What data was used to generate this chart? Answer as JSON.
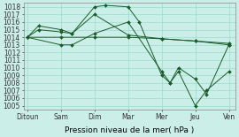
{
  "xlabel": "Pression niveau de la mer( hPa )",
  "background_color": "#cceee8",
  "grid_color": "#99ddcc",
  "line_color": "#1a5c2a",
  "marker_color": "#1a5c2a",
  "x_labels": [
    "Ditoun",
    "Sam",
    "Dim",
    "Mar",
    "Mer",
    "Jeu",
    "Ven"
  ],
  "x_positions": [
    0,
    2,
    4,
    6,
    8,
    10,
    12
  ],
  "ylim": [
    1004.5,
    1018.5
  ],
  "yticks": [
    1005,
    1006,
    1007,
    1008,
    1009,
    1010,
    1011,
    1012,
    1013,
    1014,
    1015,
    1016,
    1017,
    1018
  ],
  "series": [
    {
      "x": [
        0,
        0.67,
        2,
        2.67,
        4,
        4.67,
        6,
        6.67,
        8,
        8.5,
        9,
        10,
        10.67,
        12
      ],
      "y": [
        1014,
        1015.5,
        1015,
        1014.5,
        1018,
        1018.2,
        1018,
        1016,
        1009,
        1008,
        1009.5,
        1005,
        1007,
        1009.5
      ]
    },
    {
      "x": [
        0,
        0.67,
        2,
        2.67,
        4,
        6,
        8,
        10,
        12
      ],
      "y": [
        1014,
        1015,
        1014.7,
        1014.5,
        1017,
        1014.3,
        1013.8,
        1013.5,
        1013
      ]
    },
    {
      "x": [
        0,
        2,
        4,
        6,
        8,
        10,
        12
      ],
      "y": [
        1014,
        1014,
        1014,
        1014,
        1013.8,
        1013.5,
        1013.2
      ]
    },
    {
      "x": [
        0,
        2,
        2.67,
        4,
        6,
        8,
        8.5,
        9,
        10,
        10.67,
        12
      ],
      "y": [
        1014,
        1013,
        1013,
        1014.5,
        1016,
        1009.5,
        1008,
        1010,
        1008.5,
        1006.5,
        1013
      ]
    }
  ]
}
